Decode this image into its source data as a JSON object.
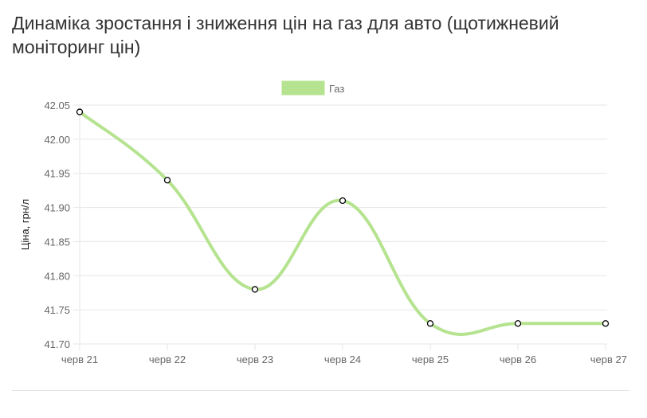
{
  "title": "Динаміка зростання і зниження цін на газ для авто (щотижневий моніторинг цін)",
  "chart_data": {
    "type": "line",
    "title": "Динаміка зростання і зниження цін на газ для авто (щотижневий моніторинг цін)",
    "xlabel": "",
    "ylabel": "Ціна, грн/л",
    "categories": [
      "черв 21",
      "черв 22",
      "черв 23",
      "черв 24",
      "черв 25",
      "черв 26",
      "черв 27"
    ],
    "series": [
      {
        "name": "Газ",
        "values": [
          42.04,
          41.94,
          41.78,
          41.91,
          41.73,
          41.73,
          41.73
        ]
      }
    ],
    "ylim": [
      41.7,
      42.05
    ],
    "yticks": [
      "41.70",
      "41.75",
      "41.80",
      "41.85",
      "41.90",
      "41.95",
      "42.00",
      "42.05"
    ],
    "grid": true,
    "legend_position": "top-center",
    "colors": {
      "series_line": "#b5e38f",
      "marker_stroke": "#000000",
      "marker_fill": "#ffffff",
      "grid": "#e6e6e6",
      "tick_text": "#666666",
      "title_text": "#333333"
    }
  }
}
